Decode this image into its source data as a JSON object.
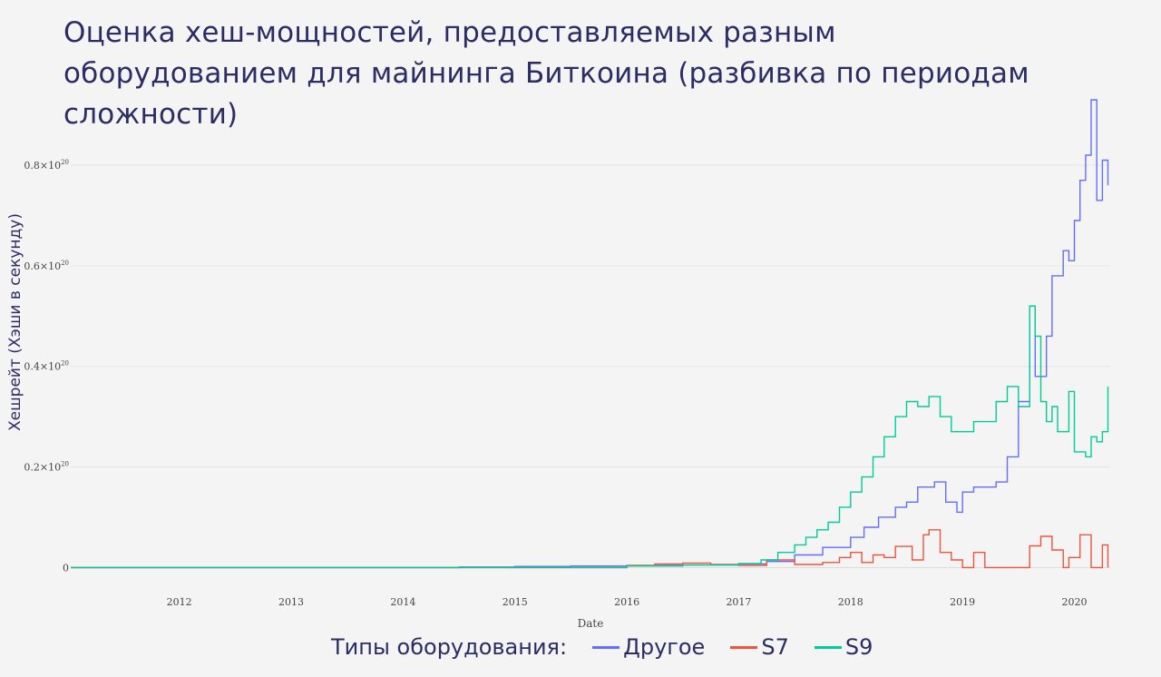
{
  "title": "Оценка хеш-мощностей, предоставляемых разным оборудованием для майнинга Биткоина (разбивка по периодам сложности)",
  "chart_data": {
    "type": "line",
    "line_shape": "step",
    "xlabel": "Date",
    "ylabel": "Хешрейт (Хэши в секунду)",
    "x_ticks": [
      "2012",
      "2013",
      "2014",
      "2015",
      "2016",
      "2017",
      "2018",
      "2019",
      "2020"
    ],
    "y_ticks": [
      {
        "value": 0,
        "label": "0"
      },
      {
        "value": 2e+19,
        "label": "0.2×10",
        "exp": "20"
      },
      {
        "value": 4e+19,
        "label": "0.4×10",
        "exp": "20"
      },
      {
        "value": 6e+19,
        "label": "0.6×10",
        "exp": "20"
      },
      {
        "value": 8e+19,
        "label": "0.8×10",
        "exp": "20"
      }
    ],
    "xlim": [
      2011.03,
      2020.32
    ],
    "ylim": [
      -1.2e+18,
      9.3e+19
    ],
    "grid": "horizontal",
    "legend_title": "Типы оборудования:",
    "legend_position": "bottom",
    "series": [
      {
        "name": "Другое",
        "color": "#636efa",
        "x": [
          2011.03,
          2014.0,
          2014.5,
          2015.0,
          2015.5,
          2016.0,
          2016.5,
          2017.0,
          2017.25,
          2017.5,
          2017.75,
          2018.0,
          2018.12,
          2018.25,
          2018.4,
          2018.5,
          2018.6,
          2018.75,
          2018.85,
          2018.95,
          2019.0,
          2019.1,
          2019.2,
          2019.3,
          2019.4,
          2019.5,
          2019.6,
          2019.65,
          2019.75,
          2019.8,
          2019.9,
          2019.95,
          2020.0,
          2020.05,
          2020.1,
          2020.15,
          2020.2,
          2020.25,
          2020.3
        ],
        "values": [
          0,
          0,
          1e+17,
          2e+17,
          3e+17,
          4e+17,
          5e+17,
          7e+17,
          1.2e+18,
          2.5e+18,
          4e+18,
          6e+18,
          8e+18,
          1e+19,
          1.2e+19,
          1.3e+19,
          1.6e+19,
          1.7e+19,
          1.3e+19,
          1.1e+19,
          1.5e+19,
          1.6e+19,
          1.6e+19,
          1.7e+19,
          2.2e+19,
          3.3e+19,
          5.2e+19,
          3.8e+19,
          4.6e+19,
          5.8e+19,
          6.3e+19,
          6.1e+19,
          6.9e+19,
          7.7e+19,
          8.2e+19,
          9.3e+19,
          7.3e+19,
          8.1e+19,
          7.6e+19
        ]
      },
      {
        "name": "S7",
        "color": "#ef553b",
        "x": [
          2011.03,
          2015.5,
          2016.0,
          2016.25,
          2016.5,
          2016.75,
          2017.0,
          2017.25,
          2017.5,
          2017.75,
          2017.9,
          2018.0,
          2018.1,
          2018.2,
          2018.3,
          2018.4,
          2018.55,
          2018.65,
          2018.7,
          2018.8,
          2018.9,
          2019.0,
          2019.1,
          2019.2,
          2019.3,
          2019.45,
          2019.6,
          2019.7,
          2019.8,
          2019.9,
          2019.95,
          2020.05,
          2020.15,
          2020.25,
          2020.3
        ],
        "values": [
          0,
          0,
          4e+17,
          7e+17,
          9e+17,
          6e+17,
          4e+17,
          1.5e+18,
          6e+17,
          1e+18,
          2e+18,
          3e+18,
          1e+18,
          2.5e+18,
          2e+18,
          4.2e+18,
          1.5e+18,
          6.5e+18,
          7.5e+18,
          3e+18,
          1.5e+18,
          0,
          3e+18,
          0,
          0,
          0,
          4.3e+18,
          6.2e+18,
          3.5e+18,
          0,
          2e+18,
          6.5e+18,
          0,
          4.5e+18,
          0
        ]
      },
      {
        "name": "S9",
        "color": "#00cc96",
        "x": [
          2011.03,
          2015.5,
          2016.0,
          2016.5,
          2017.0,
          2017.2,
          2017.35,
          2017.5,
          2017.6,
          2017.7,
          2017.8,
          2017.9,
          2018.0,
          2018.1,
          2018.2,
          2018.3,
          2018.4,
          2018.5,
          2018.6,
          2018.7,
          2018.8,
          2018.9,
          2019.0,
          2019.1,
          2019.2,
          2019.3,
          2019.4,
          2019.5,
          2019.6,
          2019.65,
          2019.7,
          2019.75,
          2019.8,
          2019.85,
          2019.95,
          2020.0,
          2020.1,
          2020.15,
          2020.2,
          2020.25,
          2020.3
        ],
        "values": [
          0,
          0,
          3e+17,
          5e+17,
          8e+17,
          1.5e+18,
          3e+18,
          4.5e+18,
          6e+18,
          7.5e+18,
          9e+18,
          1.2e+19,
          1.5e+19,
          1.8e+19,
          2.2e+19,
          2.6e+19,
          3e+19,
          3.3e+19,
          3.2e+19,
          3.4e+19,
          3e+19,
          2.7e+19,
          2.7e+19,
          2.9e+19,
          2.9e+19,
          3.3e+19,
          3.6e+19,
          3.2e+19,
          5.2e+19,
          4.6e+19,
          3.3e+19,
          2.9e+19,
          3.2e+19,
          2.7e+19,
          3.5e+19,
          2.3e+19,
          2.2e+19,
          2.6e+19,
          2.5e+19,
          2.7e+19,
          3.6e+19
        ]
      }
    ]
  }
}
